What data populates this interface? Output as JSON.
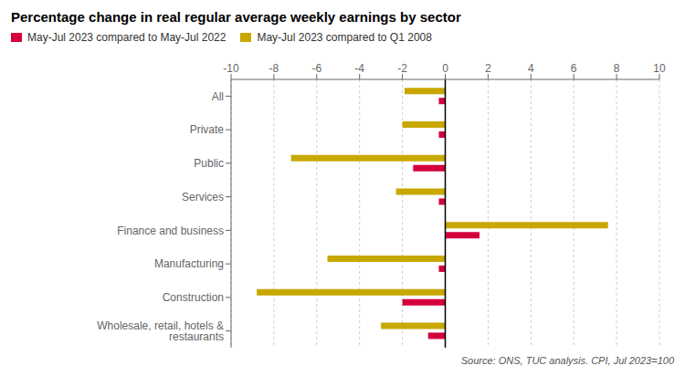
{
  "chart_data": {
    "type": "bar",
    "orientation": "horizontal",
    "title": "Percentage change in real regular average weekly earnings by sector",
    "categories": [
      "All",
      "Private",
      "Public",
      "Services",
      "Finance and business",
      "Manufacturing",
      "Construction",
      "Wholesale, retail, hotels & restaurants"
    ],
    "series": [
      {
        "name": "May-Jul 2023 compared to May-Jul 2022",
        "color": "#d4003c",
        "values": [
          -0.3,
          -0.3,
          -1.5,
          -0.3,
          1.6,
          -0.3,
          -2.0,
          -0.8
        ]
      },
      {
        "name": "May-Jul 2023 compared to Q1 2008",
        "color": "#c8a800",
        "values": [
          -1.9,
          -2.0,
          -7.2,
          -2.3,
          7.6,
          -5.5,
          -8.8,
          -3.0
        ]
      }
    ],
    "xlim": [
      -10,
      10
    ],
    "xticks": [
      -10,
      -8,
      -6,
      -4,
      -2,
      0,
      2,
      4,
      6,
      8,
      10
    ],
    "grid": true,
    "legend": "top",
    "annotations": [
      "Source: ONS, TUC analysis. CPI, Jul 2023=100"
    ]
  }
}
